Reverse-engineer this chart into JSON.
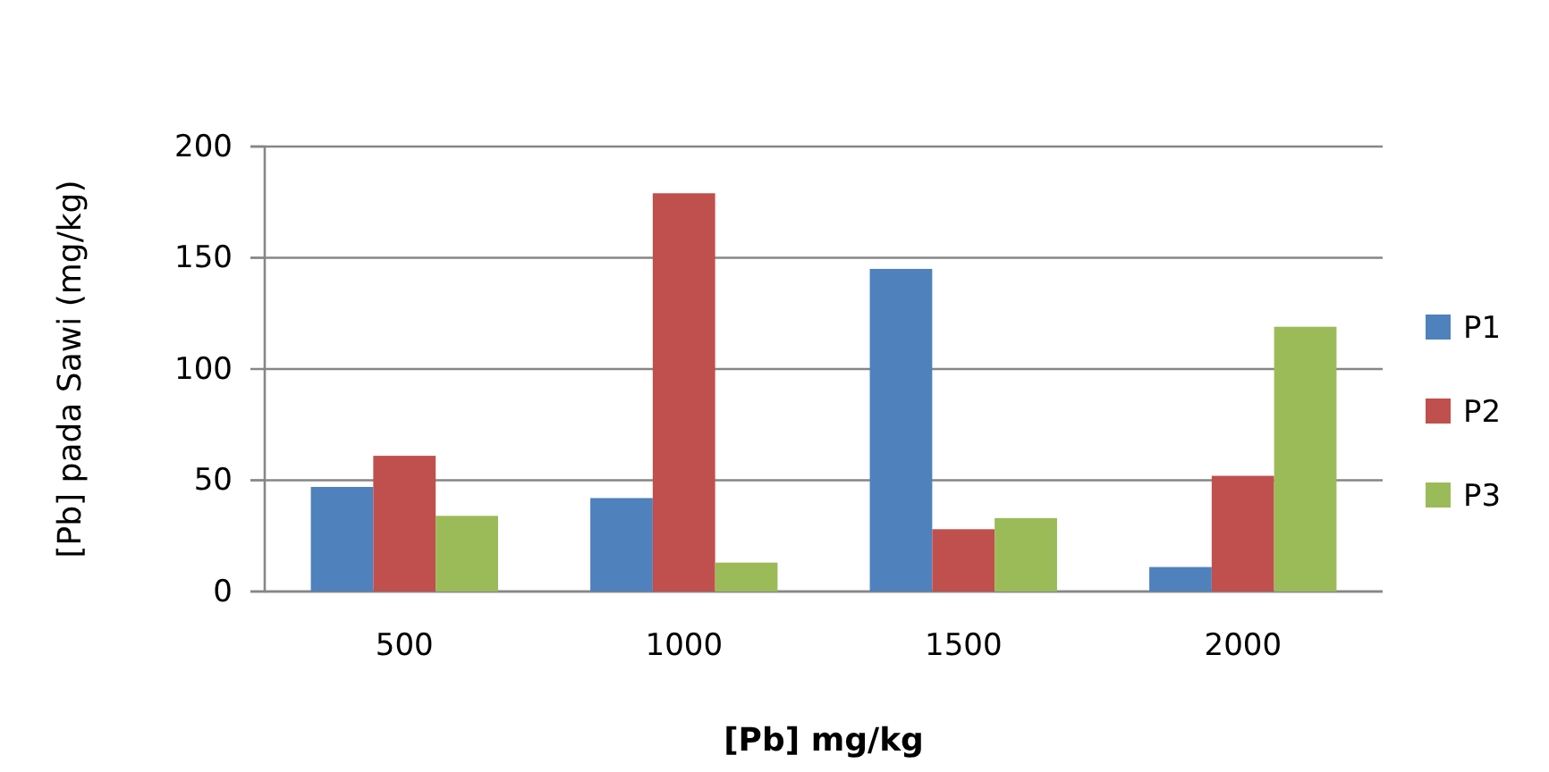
{
  "chart_data": {
    "type": "bar",
    "xlabel": "[Pb] mg/kg",
    "ylabel": "[Pb] pada Sawi (mg/kg)",
    "categories": [
      "500",
      "1000",
      "1500",
      "2000"
    ],
    "series": [
      {
        "name": "P1",
        "color": "#4f81bd",
        "values": [
          47,
          42,
          145,
          11
        ]
      },
      {
        "name": "P2",
        "color": "#c0504d",
        "values": [
          61,
          179,
          28,
          52
        ]
      },
      {
        "name": "P3",
        "color": "#9bbb59",
        "values": [
          34,
          13,
          33,
          119
        ]
      }
    ],
    "ylim": [
      0,
      200
    ],
    "yticks": [
      0,
      50,
      100,
      150,
      200
    ],
    "grid": "y",
    "legend": "right"
  }
}
